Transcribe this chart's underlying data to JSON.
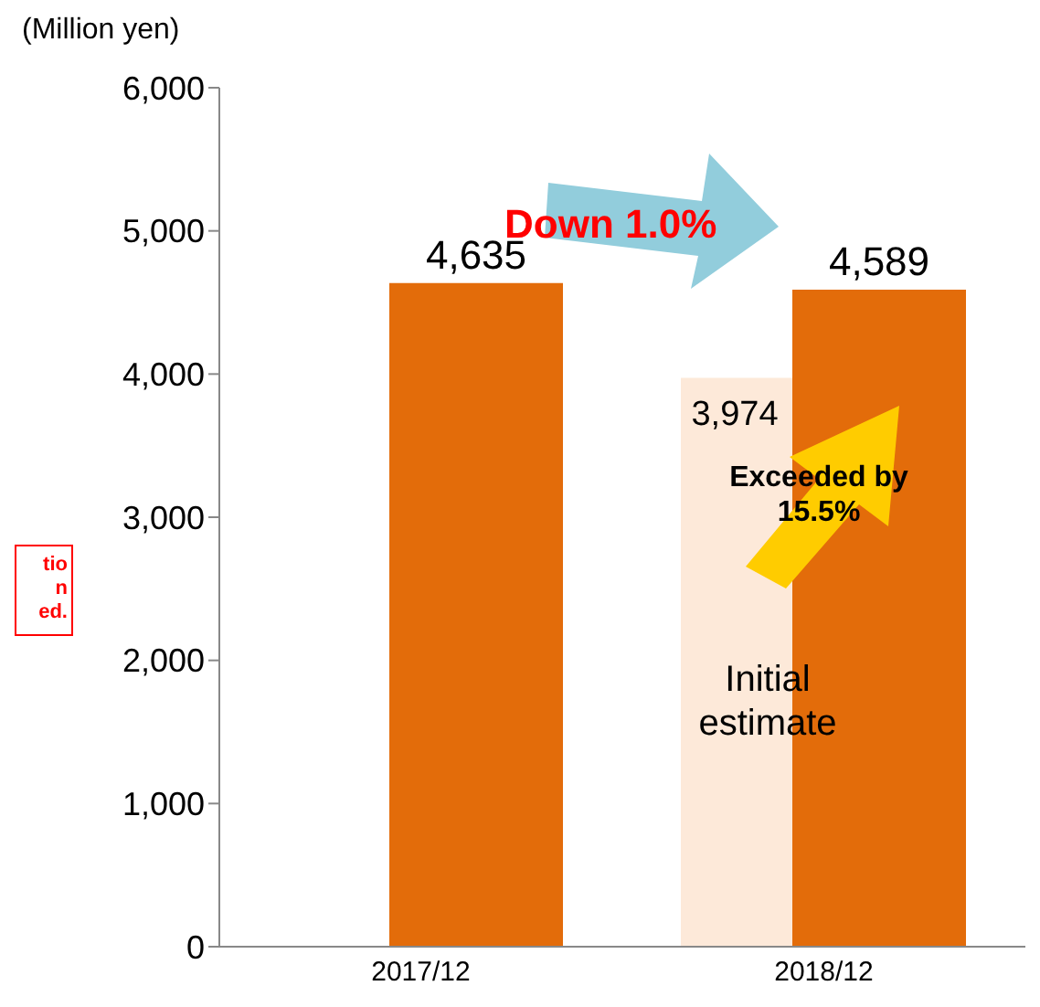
{
  "chart_data": {
    "type": "bar",
    "ylabel": "(Million yen)",
    "categories": [
      "2017/12",
      "2018/12"
    ],
    "series": [
      {
        "name": "Initial estimate",
        "color": "#fde9d9",
        "values": [
          null,
          3974
        ],
        "value_labels": [
          null,
          "3,974"
        ]
      },
      {
        "color": "#e36c0a",
        "values": [
          4635,
          4589
        ],
        "value_labels": [
          "4,635",
          "4,589"
        ]
      }
    ],
    "ylim": [
      0,
      6000
    ],
    "yticks": [
      0,
      {
        "value": 1000,
        "label": "1,000"
      },
      {
        "value": 2000,
        "label": "2,000"
      },
      {
        "value": 3000,
        "label": "3,000"
      },
      {
        "value": 4000,
        "label": "4,000"
      },
      {
        "value": 5000,
        "label": "5,000"
      },
      {
        "value": 6000,
        "label": "6,000"
      }
    ],
    "grid": false,
    "legend": false,
    "annotations": [
      "Down 1.0%",
      "Exceeded by 15.5%",
      "tio\nn\ned."
    ]
  }
}
